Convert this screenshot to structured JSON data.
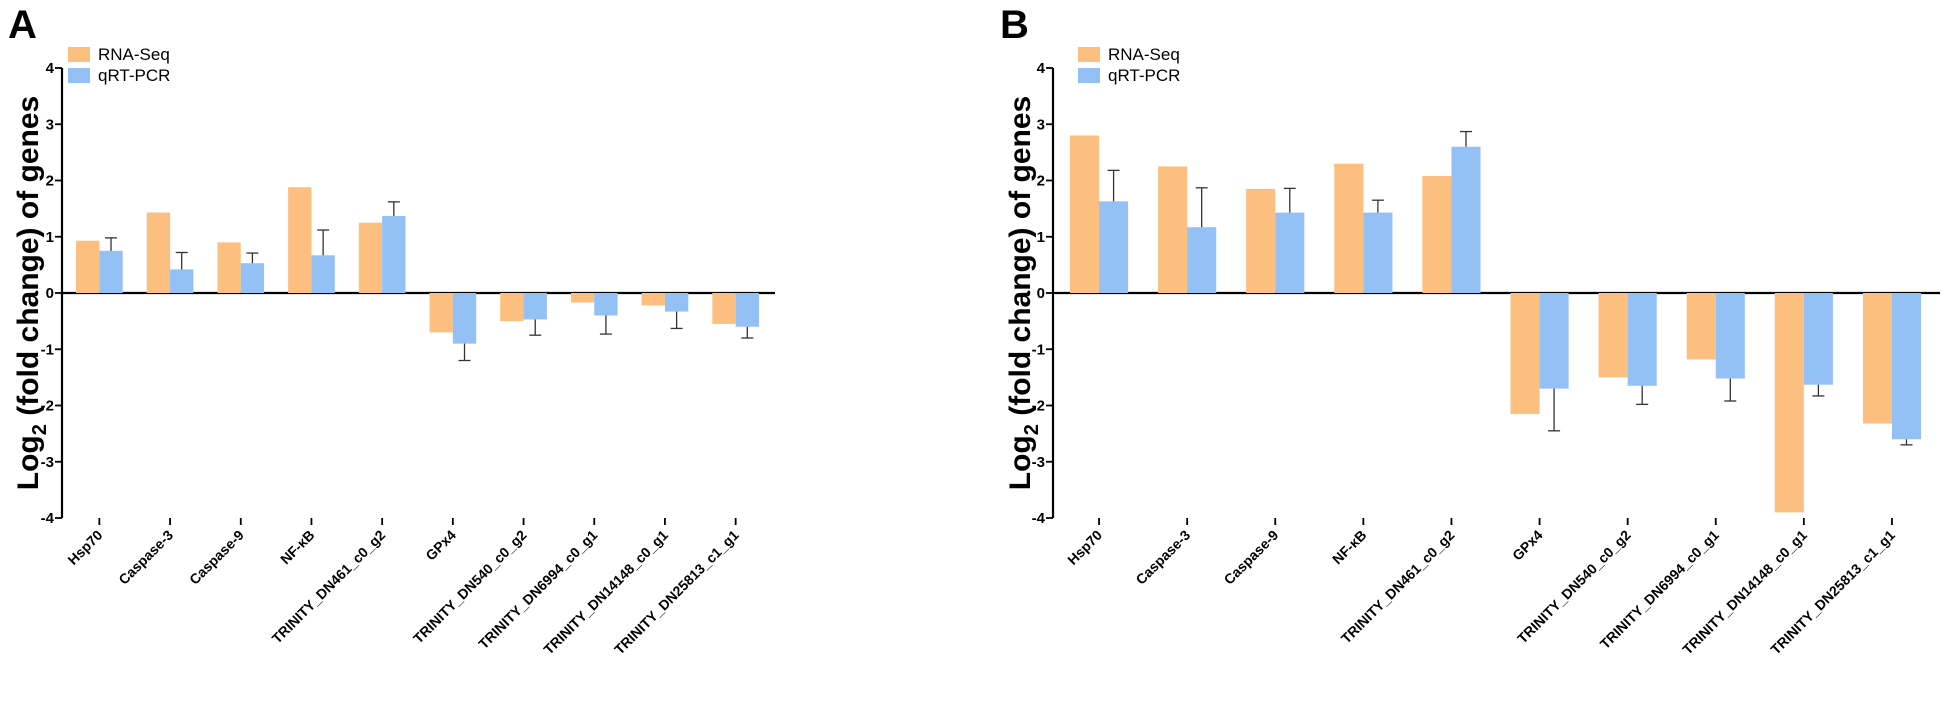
{
  "colors": {
    "rna_seq": "#FDBF80",
    "qrt_pcr": "#94C1F5"
  },
  "chart_data": [
    {
      "panel": "A",
      "type": "bar",
      "ylabel_main": "Log",
      "ylabel_sub": "2",
      "ylabel_rest": " (fold change) of genes",
      "ylim": [
        -4,
        4
      ],
      "yticks": [
        "-4",
        "-3",
        "-2",
        "-1",
        "0",
        "1",
        "2",
        "3",
        "4"
      ],
      "legend": {
        "position": "top-left",
        "items": [
          "RNA-Seq",
          "qRT-PCR"
        ]
      },
      "categories": [
        "Hsp70",
        "Caspase-3",
        "Caspase-9",
        "NF-κB",
        "TRINITY_DN461_c0_g2",
        "GPx4",
        "TRINITY_DN540_c0_g2",
        "TRINITY_DN6994_c0_g1",
        "TRINITY_DN14148_c0_g1",
        "TRINITY_DN25813_c1_g1"
      ],
      "series": [
        {
          "name": "RNA-Seq",
          "values": [
            0.93,
            1.43,
            0.9,
            1.88,
            1.25,
            -0.7,
            -0.5,
            -0.17,
            -0.22,
            -0.55
          ],
          "errors": [
            0,
            0,
            0,
            0,
            0,
            0,
            0,
            0,
            0,
            0
          ]
        },
        {
          "name": "qRT-PCR",
          "values": [
            0.75,
            0.42,
            0.53,
            0.67,
            1.37,
            -0.9,
            -0.47,
            -0.4,
            -0.33,
            -0.6
          ],
          "errors": [
            0.23,
            0.3,
            0.18,
            0.45,
            0.25,
            0.3,
            0.28,
            0.33,
            0.3,
            0.2
          ]
        }
      ]
    },
    {
      "panel": "B",
      "type": "bar",
      "ylabel_main": "Log",
      "ylabel_sub": "2",
      "ylabel_rest": " (fold change) of genes",
      "ylim": [
        -4,
        4
      ],
      "yticks": [
        "-4",
        "-3",
        "-2",
        "-1",
        "0",
        "1",
        "2",
        "3",
        "4"
      ],
      "legend": {
        "position": "top-left",
        "items": [
          "RNA-Seq",
          "qRT-PCR"
        ]
      },
      "categories": [
        "Hsp70",
        "Caspase-3",
        "Caspase-9",
        "NF-κB",
        "TRINITY_DN461_c0_g2",
        "GPx4",
        "TRINITY_DN540_c0_g2",
        "TRINITY_DN6994_c0_g1",
        "TRINITY_DN14148_c0_g1",
        "TRINITY_DN25813_c1_g1"
      ],
      "series": [
        {
          "name": "RNA-Seq",
          "values": [
            2.8,
            2.25,
            1.85,
            2.3,
            2.08,
            -2.15,
            -1.5,
            -1.18,
            -3.9,
            -2.32
          ],
          "errors": [
            0,
            0,
            0,
            0,
            0,
            0,
            0,
            0,
            0,
            0
          ]
        },
        {
          "name": "qRT-PCR",
          "values": [
            1.63,
            1.17,
            1.43,
            1.43,
            2.6,
            -1.7,
            -1.65,
            -1.52,
            -1.63,
            -2.6
          ],
          "errors": [
            0.55,
            0.7,
            0.43,
            0.22,
            0.27,
            0.75,
            0.33,
            0.4,
            0.2,
            0.1
          ]
        }
      ]
    }
  ]
}
